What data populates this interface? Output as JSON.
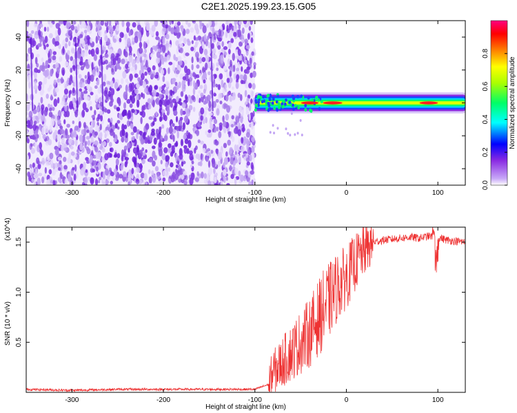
{
  "title": "C2E1.2025.199.23.15.G05",
  "chart_data": [
    {
      "type": "heatmap",
      "name": "spectrogram",
      "xlabel": "Height of straight line (km)",
      "ylabel": "Frequency (Hz)",
      "xlim": [
        -350,
        130
      ],
      "ylim": [
        -50,
        50
      ],
      "xticks": [
        -300,
        -200,
        -100,
        0,
        100
      ],
      "yticks": [
        -40,
        -20,
        0,
        20,
        40
      ],
      "colorbar": {
        "label": "Normalized spectral amplitude",
        "range": [
          0,
          1
        ],
        "ticks": [
          "0.0",
          "0.2",
          "0.4",
          "0.6",
          "0.8"
        ],
        "tick_values": [
          0.0,
          0.2,
          0.4,
          0.6,
          0.8
        ],
        "colors": [
          "#ffffff",
          "#8a2be2",
          "#0000ff",
          "#00ffff",
          "#00ff00",
          "#ffff00",
          "#ff8000",
          "#ff0000",
          "#ff0080"
        ]
      },
      "regions": [
        {
          "x_range": [
            -350,
            -100
          ],
          "freq_range": [
            -50,
            50
          ],
          "amplitude": "low",
          "pattern": "broadband noise",
          "color": "#8a2be2"
        },
        {
          "x_range": [
            -100,
            130
          ],
          "center_freq": 0,
          "half_width_hz": 4,
          "amplitude": "high",
          "pattern": "narrow carrier line"
        }
      ],
      "carrier_peaks": [
        {
          "x": -40,
          "amplitude": 0.9
        },
        {
          "x": -15,
          "amplitude": 1.0
        },
        {
          "x": 90,
          "amplitude": 0.95
        }
      ]
    },
    {
      "type": "line",
      "name": "snr",
      "xlabel": "Height of straight line (km)",
      "ylabel": "SNR (10 * v/v)",
      "y_multiplier": "(x10^4)",
      "xlim": [
        -350,
        130
      ],
      "ylim": [
        0,
        1.65
      ],
      "xticks": [
        -300,
        -200,
        -100,
        0,
        100
      ],
      "yticks": [
        "0.5",
        "1.0",
        "1.5"
      ],
      "ytick_values": [
        0.5,
        1.0,
        1.5
      ],
      "color": "#ee3333",
      "x": [
        -350,
        -300,
        -250,
        -200,
        -150,
        -100,
        -85,
        -80,
        -70,
        -60,
        -50,
        -40,
        -30,
        -20,
        -10,
        0,
        10,
        20,
        30,
        40,
        50,
        60,
        70,
        80,
        90,
        100,
        110,
        120,
        130
      ],
      "y": [
        0.03,
        0.02,
        0.03,
        0.03,
        0.03,
        0.03,
        0.08,
        0.2,
        0.3,
        0.4,
        0.5,
        0.6,
        0.75,
        0.9,
        1.05,
        1.15,
        1.3,
        1.42,
        1.5,
        1.52,
        1.53,
        1.54,
        1.55,
        1.54,
        1.56,
        1.55,
        1.52,
        1.51,
        1.5
      ]
    }
  ]
}
